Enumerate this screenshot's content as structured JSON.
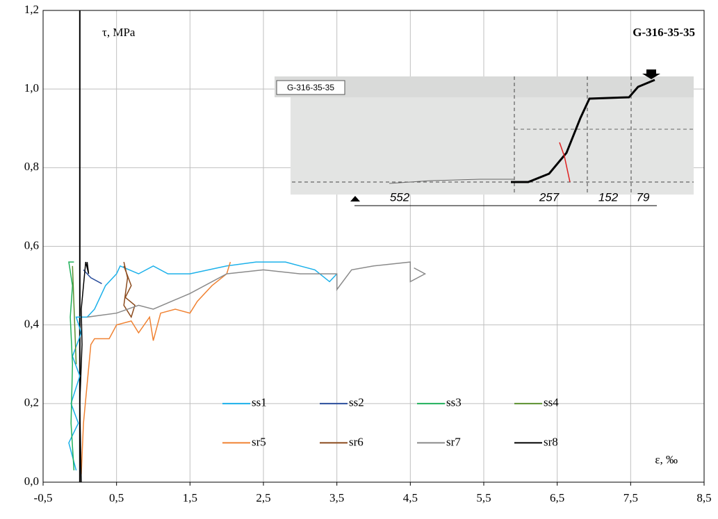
{
  "chart_data": {
    "type": "line",
    "title": "G-316-35-35",
    "y_label": "τ, MPa",
    "x_label": "ε, ‰",
    "xlim": [
      -0.5,
      8.5
    ],
    "ylim": [
      0,
      1.2
    ],
    "xticks": [
      {
        "value": -0.5,
        "label": "-0,5"
      },
      {
        "value": 0.5,
        "label": "0,5"
      },
      {
        "value": 1.5,
        "label": "1,5"
      },
      {
        "value": 2.5,
        "label": "2,5"
      },
      {
        "value": 3.5,
        "label": "3,5"
      },
      {
        "value": 4.5,
        "label": "4,5"
      },
      {
        "value": 5.5,
        "label": "5,5"
      },
      {
        "value": 6.5,
        "label": "6,5"
      },
      {
        "value": 7.5,
        "label": "7,5"
      },
      {
        "value": 8.5,
        "label": "8,5"
      }
    ],
    "yticks": [
      {
        "value": 0,
        "label": "0,0"
      },
      {
        "value": 0.2,
        "label": "0,2"
      },
      {
        "value": 0.4,
        "label": "0,4"
      },
      {
        "value": 0.6,
        "label": "0,6"
      },
      {
        "value": 0.8,
        "label": "0,8"
      },
      {
        "value": 1.0,
        "label": "1,0"
      },
      {
        "value": 1.2,
        "label": "1,2"
      }
    ],
    "grid": true,
    "y_axis_at": 0,
    "legend": "bottom-center",
    "series": [
      {
        "name": "ss1",
        "color": "#1ab0ea",
        "x": [
          -0.05,
          -0.15,
          -0.02,
          -0.12,
          0,
          -0.1,
          0.02,
          -0.05,
          0.1,
          0.2,
          0.35,
          0.5,
          0.55,
          0.8,
          1.0,
          1.2,
          1.5,
          2.0,
          2.4,
          2.8,
          3.0,
          3.2,
          3.4,
          3.5
        ],
        "values": [
          0.03,
          0.1,
          0.15,
          0.2,
          0.27,
          0.32,
          0.38,
          0.42,
          0.42,
          0.44,
          0.5,
          0.53,
          0.55,
          0.53,
          0.55,
          0.53,
          0.53,
          0.55,
          0.56,
          0.56,
          0.55,
          0.54,
          0.51,
          0.53
        ]
      },
      {
        "name": "ss2",
        "color": "#2a4d9b",
        "x": [
          0.05,
          0.15,
          0.3
        ],
        "values": [
          0.54,
          0.52,
          0.505
        ]
      },
      {
        "name": "ss3",
        "color": "#1fb05a",
        "x": [
          -0.08,
          -0.12,
          -0.1,
          -0.13,
          -0.1,
          -0.15,
          -0.08
        ],
        "values": [
          0.03,
          0.15,
          0.3,
          0.42,
          0.5,
          0.56,
          0.56
        ]
      },
      {
        "name": "ss4",
        "color": "#5a8f2e",
        "x": [
          -0.05,
          -0.08,
          -0.1
        ],
        "values": [
          0.3,
          0.45,
          0.55
        ]
      },
      {
        "name": "sr5",
        "color": "#f08232",
        "x": [
          0.02,
          0.05,
          0.1,
          0.15,
          0.2,
          0.4,
          0.5,
          0.7,
          0.8,
          0.95,
          1.0,
          1.1,
          1.3,
          1.5,
          1.6,
          1.8,
          2.0,
          2.05
        ],
        "values": [
          0.02,
          0.15,
          0.25,
          0.35,
          0.365,
          0.365,
          0.4,
          0.41,
          0.38,
          0.42,
          0.36,
          0.43,
          0.44,
          0.43,
          0.46,
          0.5,
          0.53,
          0.56
        ]
      },
      {
        "name": "sr6",
        "color": "#8b4a1c",
        "x": [
          0.6,
          0.7,
          0.62,
          0.75,
          0.7,
          0.6,
          0.65,
          0.6
        ],
        "values": [
          0.55,
          0.5,
          0.47,
          0.45,
          0.42,
          0.45,
          0.52,
          0.56
        ]
      },
      {
        "name": "sr7",
        "color": "#8a8a8a",
        "x": [
          0.1,
          0.5,
          0.8,
          1.0,
          1.5,
          2.0,
          2.5,
          3.0,
          3.5,
          3.5,
          3.7,
          4.0,
          4.5,
          4.5,
          4.7,
          4.55
        ],
        "values": [
          0.42,
          0.43,
          0.45,
          0.44,
          0.48,
          0.53,
          0.54,
          0.53,
          0.53,
          0.49,
          0.54,
          0.55,
          0.56,
          0.51,
          0.53,
          0.545
        ]
      },
      {
        "name": "sr8",
        "color": "#000000",
        "x": [
          0.02,
          0.0,
          0.03,
          0.02,
          0.05,
          0.08,
          0.12,
          0.1
        ],
        "values": [
          0.0,
          0.2,
          0.35,
          0.44,
          0.5,
          0.56,
          0.53,
          0.56
        ]
      }
    ],
    "inset": {
      "label": "G-316-35-35",
      "dimensions": [
        "552",
        "257",
        "152",
        "79"
      ]
    }
  }
}
